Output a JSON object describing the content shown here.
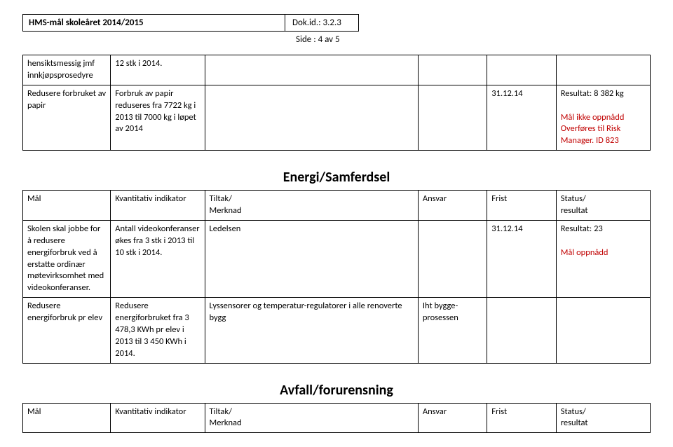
{
  "header": {
    "title": "HMS-mål skoleåret 2014/2015",
    "dokid": "Dok.id.: 3.2.3",
    "side": "Side   : 4 av 5"
  },
  "topTable": {
    "rows": [
      {
        "c1": "hensiktsmessig jmf innkjøpsprosedyre",
        "c2": "12 stk i 2014.",
        "c3": "",
        "c4": "",
        "c5": "",
        "c6": ""
      },
      {
        "c1": "Redusere forbruket av papir",
        "c2": "Forbruk av papir reduseres fra 7722 kg i 2013 til 7000 kg i løpet av 2014",
        "c3": "",
        "c4": "",
        "c5": "31.12.14",
        "c6a": "Resultat: 8 382 kg",
        "c6b": "Mål ikke oppnådd",
        "c6c": "Overføres til Risk Manager. ID 823"
      }
    ]
  },
  "energi": {
    "title": "Energi/Samferdsel",
    "head": {
      "mal": "Mål",
      "kvant": "Kvantitativ indikator",
      "tiltak": "Tiltak/\nMerknad",
      "ansvar": "Ansvar",
      "frist": "Frist",
      "status": "Status/\nresultat"
    },
    "rows": [
      {
        "c1": "Skolen skal jobbe for å redusere energiforbruk ved å erstatte ordinær møtevirksomhet med videokonferanser.",
        "c2": "Antall videokonferanser økes fra 3 stk i 2013 til 10 stk i 2014.",
        "c3": "Ledelsen",
        "c4": "",
        "c5": "31.12.14",
        "c6a": "Resultat: 23",
        "c6b": "Mål oppnådd"
      },
      {
        "c1": "Redusere energiforbruk pr elev",
        "c2": "Redusere energiforbruket fra 3 478,3 KWh pr elev i 2013 til 3 450 KWh i 2014.",
        "c3": "Lyssensorer og temperatur-regulatorer i alle renoverte bygg",
        "c4": "Iht bygge-prosessen",
        "c5": "",
        "c6": ""
      }
    ]
  },
  "avfall": {
    "title": "Avfall/forurensning",
    "head": {
      "mal": "Mål",
      "kvant": "Kvantitativ indikator",
      "tiltak": "Tiltak/\nMerknad",
      "ansvar": "Ansvar",
      "frist": "Frist",
      "status": "Status/\nresultat"
    }
  }
}
